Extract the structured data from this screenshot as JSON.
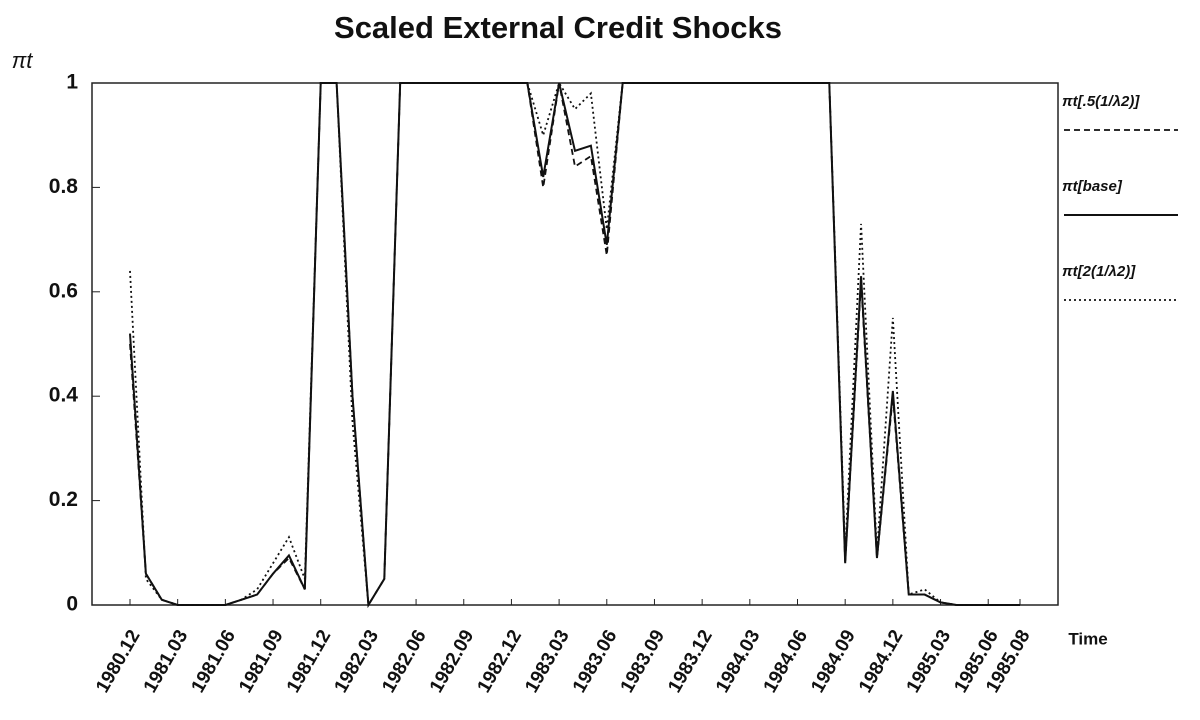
{
  "chart_data": {
    "type": "line",
    "title": "Scaled External Credit Shocks",
    "y_label": "πt",
    "x_label": "Time",
    "categories": [
      "1980.12",
      null,
      null,
      "1981.03",
      null,
      null,
      "1981.06",
      null,
      null,
      "1981.09",
      null,
      null,
      "1981.12",
      null,
      null,
      "1982.03",
      null,
      null,
      "1982.06",
      null,
      null,
      "1982.09",
      null,
      null,
      "1982.12",
      null,
      null,
      "1983.03",
      null,
      null,
      "1983.06",
      null,
      null,
      "1983.09",
      null,
      null,
      "1983.12",
      null,
      null,
      "1984.03",
      null,
      null,
      "1984.06",
      null,
      null,
      "1984.09",
      null,
      null,
      "1984.12",
      null,
      null,
      "1985.03",
      null,
      null,
      "1985.06",
      null,
      "1985.08"
    ],
    "ylim": [
      0,
      1
    ],
    "yticks": [
      0,
      0.2,
      0.4,
      0.6,
      0.8,
      1
    ],
    "series": [
      {
        "name": "πt[.5(1/λ2)]",
        "color": "#111111",
        "style": "dashed",
        "values": [
          0.5,
          0.06,
          0.01,
          0,
          0,
          0,
          0,
          0.01,
          0.02,
          0.06,
          0.09,
          0.03,
          1,
          1,
          0.4,
          0,
          0.05,
          1,
          1,
          1,
          1,
          1,
          1,
          1,
          1,
          1,
          0.8,
          1,
          0.84,
          0.86,
          0.67,
          1,
          1,
          1,
          1,
          1,
          1,
          1,
          1,
          1,
          1,
          1,
          1,
          1,
          1,
          0.08,
          0.62,
          0.09,
          0.4,
          0.02,
          0.02,
          0.005,
          0,
          0,
          0,
          0,
          0
        ]
      },
      {
        "name": "πt[base]",
        "color": "#111111",
        "style": "solid",
        "values": [
          0.52,
          0.06,
          0.01,
          0,
          0,
          0,
          0,
          0.01,
          0.02,
          0.06,
          0.095,
          0.03,
          1,
          1,
          0.4,
          0,
          0.05,
          1,
          1,
          1,
          1,
          1,
          1,
          1,
          1,
          1,
          0.82,
          1,
          0.87,
          0.88,
          0.69,
          1,
          1,
          1,
          1,
          1,
          1,
          1,
          1,
          1,
          1,
          1,
          1,
          1,
          1,
          0.08,
          0.63,
          0.09,
          0.41,
          0.02,
          0.02,
          0.005,
          0,
          0,
          0,
          0,
          0
        ]
      },
      {
        "name": "πt[2(1/λ2)]",
        "color": "#111111",
        "style": "dotted",
        "values": [
          0.64,
          0.05,
          0.01,
          0,
          0,
          0,
          0,
          0.01,
          0.03,
          0.08,
          0.13,
          0.05,
          1,
          1,
          0.35,
          0,
          0.05,
          1,
          1,
          1,
          1,
          1,
          1,
          1,
          1,
          1,
          0.9,
          1,
          0.95,
          0.98,
          0.72,
          1,
          1,
          1,
          1,
          1,
          1,
          1,
          1,
          1,
          1,
          1,
          1,
          1,
          1,
          0.1,
          0.73,
          0.1,
          0.55,
          0.02,
          0.03,
          0.005,
          0,
          0,
          0,
          0,
          0
        ]
      }
    ]
  }
}
